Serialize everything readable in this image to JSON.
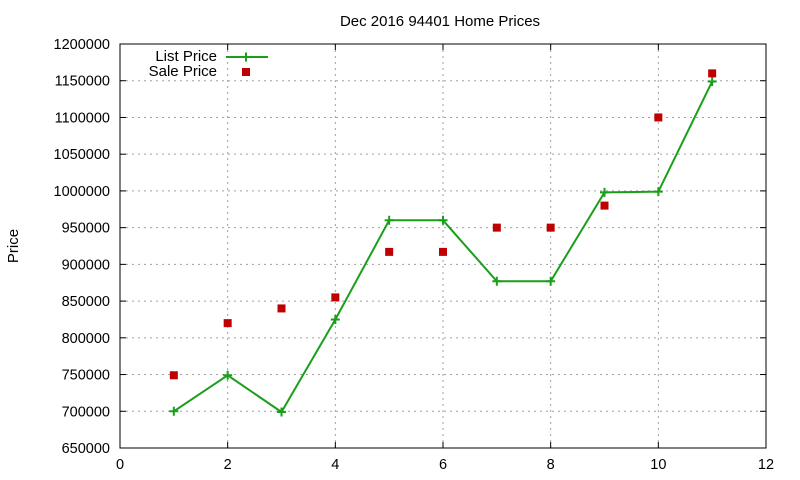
{
  "chart_data": {
    "type": "line",
    "title": "Dec 2016 94401 Home Prices",
    "xlabel": "",
    "ylabel": "Price",
    "xlim": [
      0,
      12
    ],
    "ylim": [
      650000,
      1200000
    ],
    "x_ticks": [
      0,
      2,
      4,
      6,
      8,
      10,
      12
    ],
    "y_ticks": [
      650000,
      700000,
      750000,
      800000,
      850000,
      900000,
      950000,
      1000000,
      1050000,
      1100000,
      1150000,
      1200000
    ],
    "grid": true,
    "legend_position": "top-left",
    "series": [
      {
        "name": "List Price",
        "style": "line with plus markers",
        "color": "#1a9f1a",
        "x": [
          1,
          2,
          3,
          4,
          5,
          6,
          7,
          8,
          9,
          10,
          11
        ],
        "values": [
          700000,
          749000,
          699000,
          825000,
          960000,
          960000,
          877000,
          877000,
          998000,
          999000,
          1149000
        ]
      },
      {
        "name": "Sale Price",
        "style": "square markers",
        "color": "#c00000",
        "x": [
          1,
          2,
          3,
          4,
          5,
          6,
          7,
          8,
          9,
          10,
          11
        ],
        "values": [
          749000,
          820000,
          840000,
          855000,
          917000,
          917000,
          950000,
          950000,
          980000,
          1100000,
          1160000
        ]
      }
    ]
  }
}
